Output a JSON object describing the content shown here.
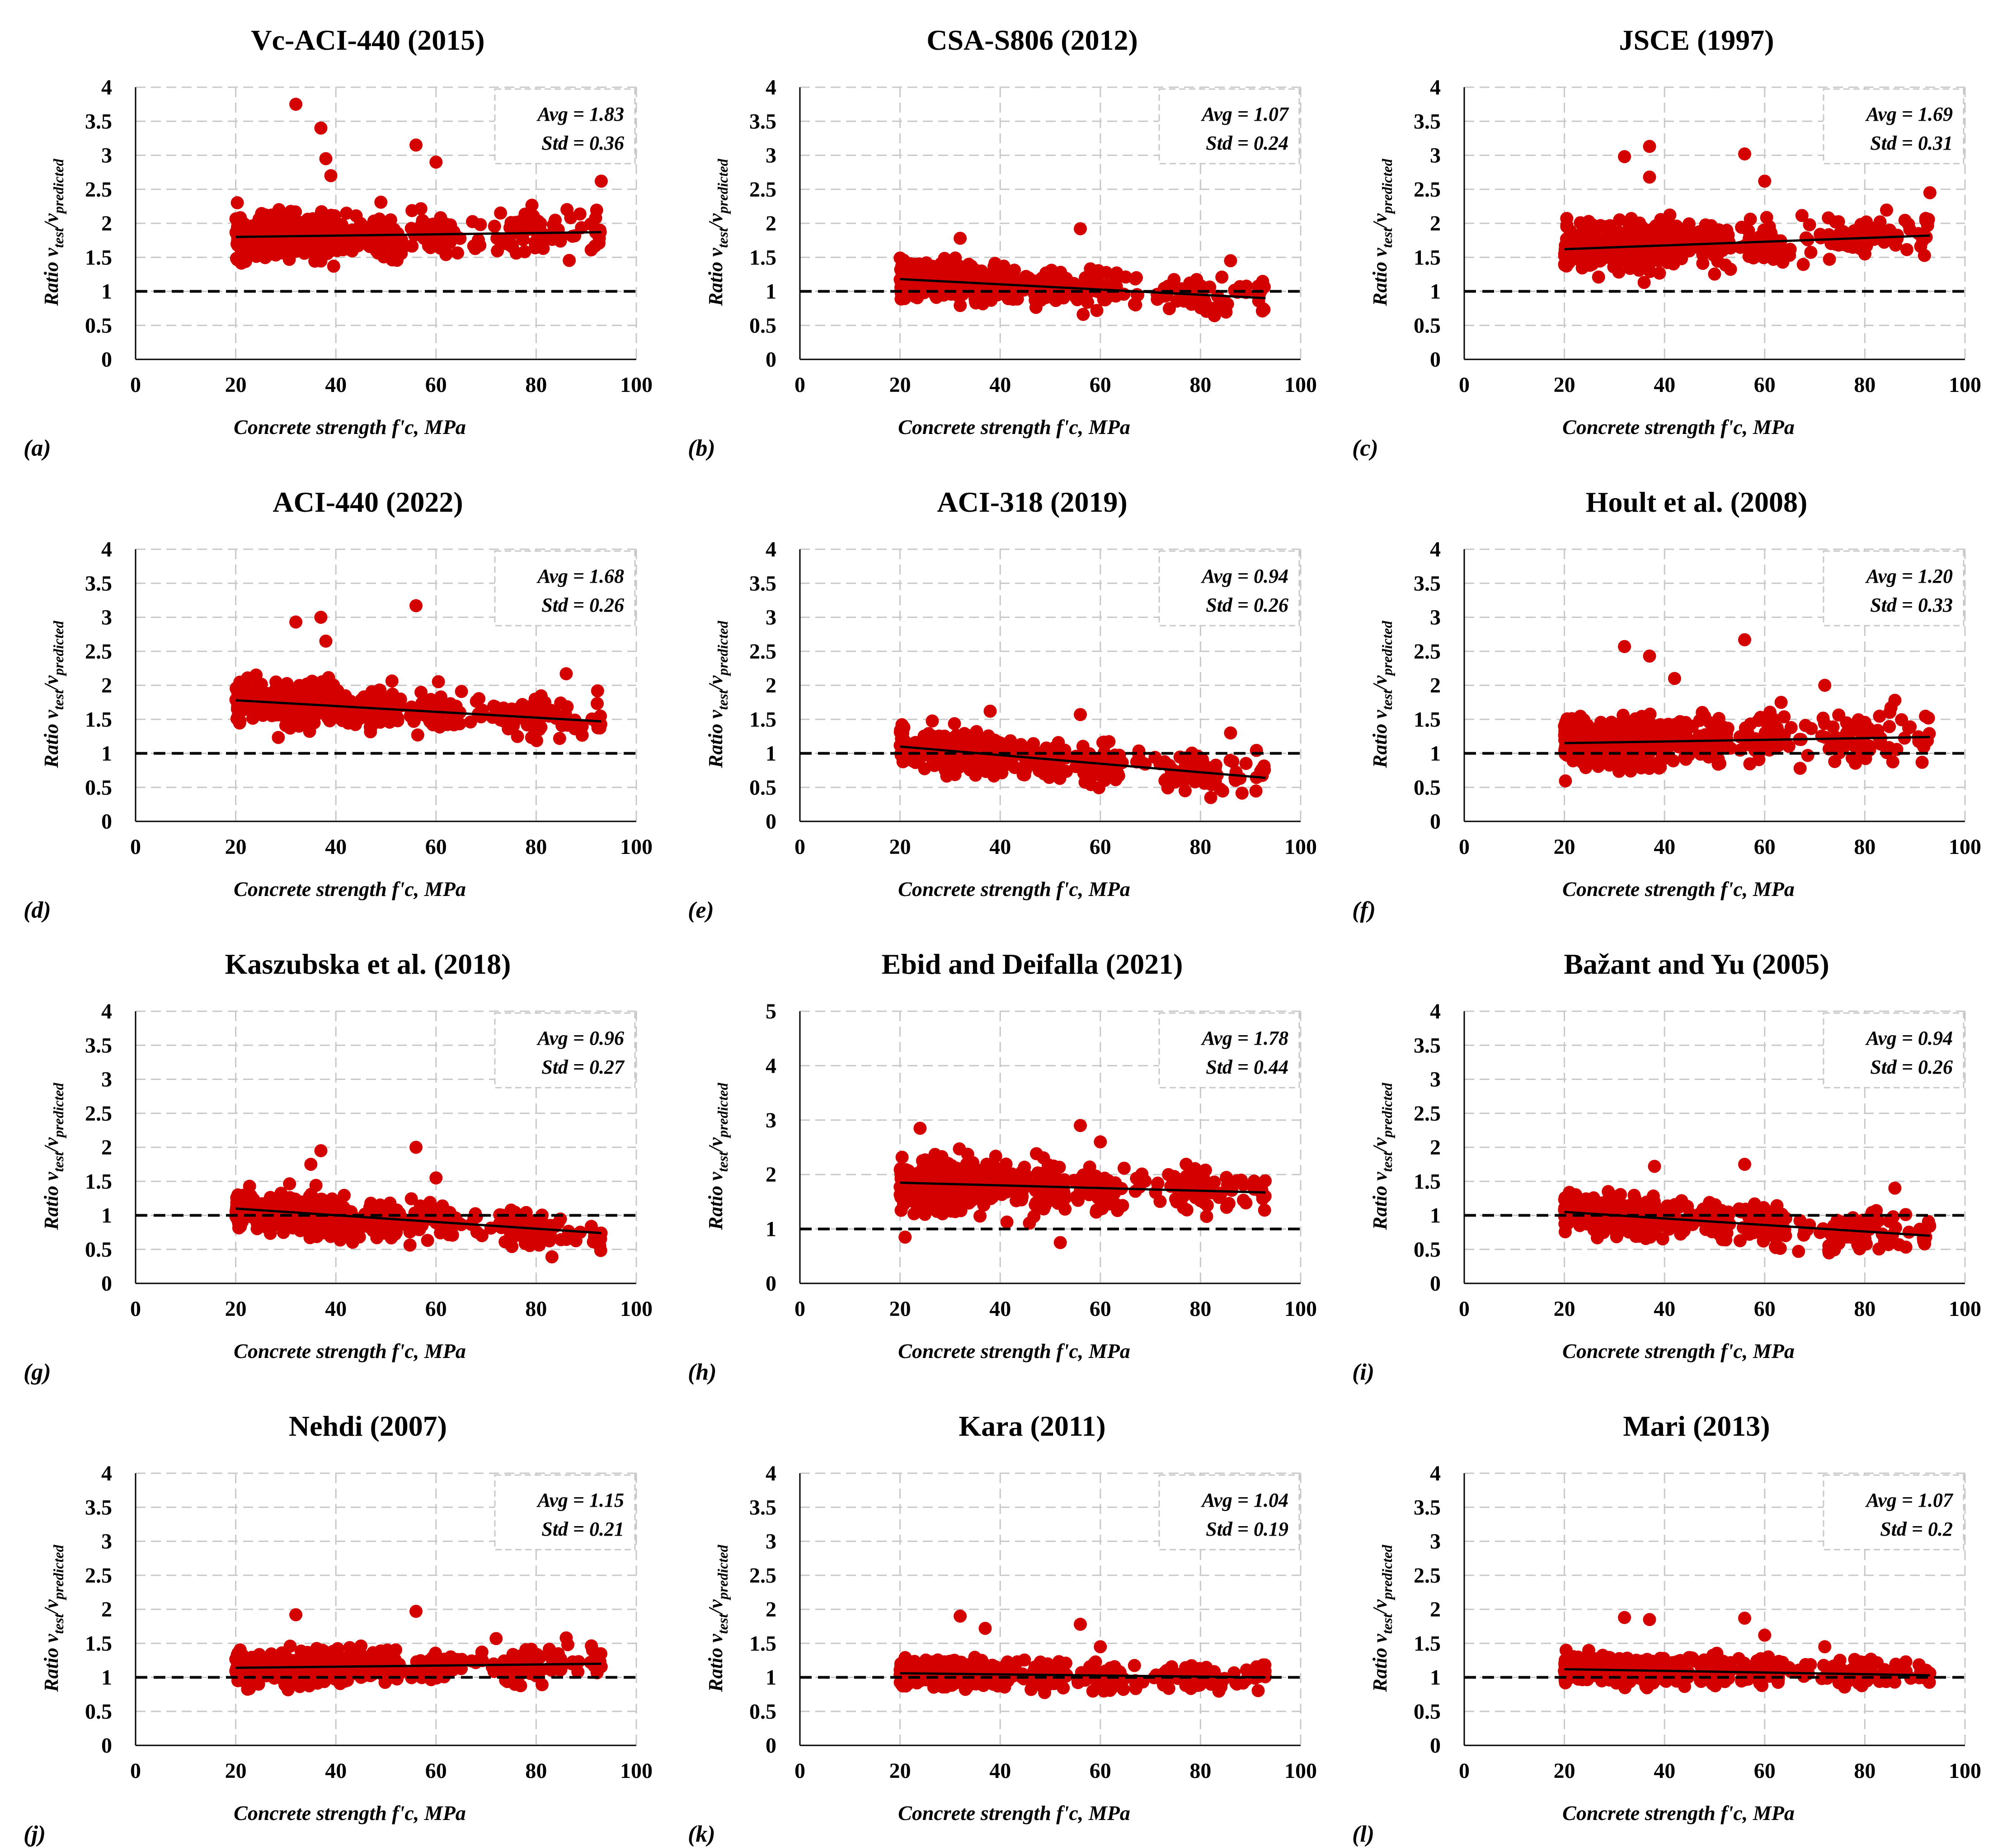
{
  "colors": {
    "point": "#d40000",
    "grid": "#c8c8c8",
    "axis": "#000000",
    "reference": "#000000",
    "trend": "#000000"
  },
  "chart_data": [
    {
      "type": "scatter",
      "panel_label": "(a)",
      "title": "Vc-ACI-440 (2015)",
      "avg_label": "Avg = 1.83",
      "std_label": "Std = 0.36",
      "avg": 1.83,
      "std": 0.36,
      "xlabel": "Concrete strength f'c, MPa",
      "ylabel_main": "Ratio v",
      "ylabel_sub1": "test",
      "ylabel_mid": "/v",
      "ylabel_sub2": "predicted",
      "xlim": [
        0,
        100
      ],
      "ylim": [
        0,
        4
      ],
      "xticks": [
        0,
        20,
        40,
        60,
        80,
        100
      ],
      "yticks": [
        0,
        0.5,
        1,
        1.5,
        2,
        2.5,
        3,
        3.5,
        4
      ],
      "xtick_labels": [
        "0",
        "20",
        "40",
        "60",
        "80",
        "100"
      ],
      "ytick_labels": [
        "0",
        "0.5",
        "1",
        "1.5",
        "2",
        "2.5",
        "3",
        "3.5",
        "4"
      ],
      "reference_line": 1,
      "trend": [
        [
          20,
          1.8
        ],
        [
          93,
          1.87
        ]
      ],
      "spread": 0.28,
      "outliers": [
        [
          32,
          3.75
        ],
        [
          37,
          3.4
        ],
        [
          38,
          2.95
        ],
        [
          56,
          3.15
        ],
        [
          60,
          2.9
        ],
        [
          93,
          2.62
        ],
        [
          39,
          2.7
        ]
      ]
    },
    {
      "type": "scatter",
      "panel_label": "(b)",
      "title": "CSA-S806 (2012)",
      "avg_label": "Avg = 1.07",
      "std_label": "Std = 0.24",
      "avg": 1.07,
      "std": 0.24,
      "xlabel": "Concrete strength f'c, MPa",
      "ylabel_main": "Ratio v",
      "ylabel_sub1": "test",
      "ylabel_mid": "/v",
      "ylabel_sub2": "predicted",
      "xlim": [
        0,
        100
      ],
      "ylim": [
        0,
        4
      ],
      "xticks": [
        0,
        20,
        40,
        60,
        80,
        100
      ],
      "yticks": [
        0,
        0.5,
        1,
        1.5,
        2,
        2.5,
        3,
        3.5,
        4
      ],
      "xtick_labels": [
        "0",
        "20",
        "40",
        "60",
        "80",
        "100"
      ],
      "ytick_labels": [
        "0",
        "0.5",
        "1",
        "1.5",
        "2",
        "2.5",
        "3",
        "3.5",
        "4"
      ],
      "reference_line": 1,
      "trend": [
        [
          20,
          1.18
        ],
        [
          93,
          0.9
        ]
      ],
      "spread": 0.22,
      "outliers": [
        [
          56,
          1.92
        ],
        [
          86,
          1.45
        ],
        [
          32,
          1.78
        ]
      ]
    },
    {
      "type": "scatter",
      "panel_label": "(c)",
      "title": "JSCE (1997)",
      "avg_label": "Avg = 1.69",
      "std_label": "Std = 0.31",
      "avg": 1.69,
      "std": 0.31,
      "xlabel": "Concrete strength f'c, MPa",
      "ylabel_main": "Ratio v",
      "ylabel_sub1": "test",
      "ylabel_mid": "/v",
      "ylabel_sub2": "predicted",
      "xlim": [
        0,
        100
      ],
      "ylim": [
        0,
        4
      ],
      "xticks": [
        0,
        20,
        40,
        60,
        80,
        100
      ],
      "yticks": [
        0,
        0.5,
        1,
        1.5,
        2,
        2.5,
        3,
        3.5,
        4
      ],
      "xtick_labels": [
        "0",
        "20",
        "40",
        "60",
        "80",
        "100"
      ],
      "ytick_labels": [
        "0",
        "0.5",
        "1",
        "1.5",
        "2",
        "2.5",
        "3",
        "3.5",
        "4"
      ],
      "reference_line": 1,
      "trend": [
        [
          20,
          1.62
        ],
        [
          93,
          1.82
        ]
      ],
      "spread": 0.27,
      "outliers": [
        [
          32,
          2.98
        ],
        [
          37,
          3.13
        ],
        [
          37,
          2.68
        ],
        [
          56,
          3.02
        ],
        [
          60,
          2.62
        ],
        [
          93,
          2.45
        ]
      ]
    },
    {
      "type": "scatter",
      "panel_label": "(d)",
      "title": "ACI-440 (2022)",
      "avg_label": "Avg = 1.68",
      "std_label": "Std = 0.26",
      "avg": 1.68,
      "std": 0.26,
      "xlabel": "Concrete strength f'c, MPa",
      "ylabel_main": "Ratio v",
      "ylabel_sub1": "test",
      "ylabel_mid": "/v",
      "ylabel_sub2": "predicted",
      "xlim": [
        0,
        100
      ],
      "ylim": [
        0,
        4
      ],
      "xticks": [
        0,
        20,
        40,
        60,
        80,
        100
      ],
      "yticks": [
        0,
        0.5,
        1,
        1.5,
        2,
        2.5,
        3,
        3.5,
        4
      ],
      "xtick_labels": [
        "0",
        "20",
        "40",
        "60",
        "80",
        "100"
      ],
      "ytick_labels": [
        "0",
        "0.5",
        "1",
        "1.5",
        "2",
        "2.5",
        "3",
        "3.5",
        "4"
      ],
      "reference_line": 1,
      "trend": [
        [
          20,
          1.78
        ],
        [
          93,
          1.47
        ]
      ],
      "spread": 0.25,
      "outliers": [
        [
          32,
          2.93
        ],
        [
          37,
          3.0
        ],
        [
          56,
          3.17
        ],
        [
          38,
          2.65
        ],
        [
          86,
          2.17
        ]
      ]
    },
    {
      "type": "scatter",
      "panel_label": "(e)",
      "title": "ACI-318 (2019)",
      "avg_label": "Avg = 0.94",
      "std_label": "Std = 0.26",
      "avg": 0.94,
      "std": 0.26,
      "xlabel": "Concrete strength f'c, MPa",
      "ylabel_main": "Ratio v",
      "ylabel_sub1": "test",
      "ylabel_mid": "/v",
      "ylabel_sub2": "predicted",
      "xlim": [
        0,
        100
      ],
      "ylim": [
        0,
        4
      ],
      "xticks": [
        0,
        20,
        40,
        60,
        80,
        100
      ],
      "yticks": [
        0,
        0.5,
        1,
        1.5,
        2,
        2.5,
        3,
        3.5,
        4
      ],
      "xtick_labels": [
        "0",
        "20",
        "40",
        "60",
        "80",
        "100"
      ],
      "ytick_labels": [
        "0",
        "0.5",
        "1",
        "1.5",
        "2",
        "2.5",
        "3",
        "3.5",
        "4"
      ],
      "reference_line": 1,
      "trend": [
        [
          20,
          1.1
        ],
        [
          93,
          0.64
        ]
      ],
      "spread": 0.24,
      "outliers": [
        [
          56,
          1.57
        ],
        [
          86,
          1.3
        ],
        [
          38,
          1.62
        ]
      ]
    },
    {
      "type": "scatter",
      "panel_label": "(f)",
      "title": "Hoult et al. (2008)",
      "avg_label": "Avg = 1.20",
      "std_label": "Std = 0.33",
      "avg": 1.2,
      "std": 0.33,
      "xlabel": "Concrete strength f'c, MPa",
      "ylabel_main": "Ratio v",
      "ylabel_sub1": "test",
      "ylabel_mid": "/v",
      "ylabel_sub2": "predicted",
      "xlim": [
        0,
        100
      ],
      "ylim": [
        0,
        4
      ],
      "xticks": [
        0,
        20,
        40,
        60,
        80,
        100
      ],
      "yticks": [
        0,
        0.5,
        1,
        1.5,
        2,
        2.5,
        3,
        3.5,
        4
      ],
      "xtick_labels": [
        "0",
        "20",
        "40",
        "60",
        "80",
        "100"
      ],
      "ytick_labels": [
        "0",
        "0.5",
        "1",
        "1.5",
        "2",
        "2.5",
        "3",
        "3.5",
        "4"
      ],
      "reference_line": 1,
      "trend": [
        [
          20,
          1.15
        ],
        [
          93,
          1.24
        ]
      ],
      "spread": 0.3,
      "outliers": [
        [
          32,
          2.57
        ],
        [
          37,
          2.43
        ],
        [
          56,
          2.67
        ],
        [
          72,
          2.0
        ],
        [
          86,
          1.78
        ],
        [
          42,
          2.1
        ]
      ]
    },
    {
      "type": "scatter",
      "panel_label": "(g)",
      "title": "Kaszubska  et al. (2018)",
      "avg_label": "Avg = 0.96",
      "std_label": "Std = 0.27",
      "avg": 0.96,
      "std": 0.27,
      "xlabel": "Concrete strength f'c, MPa",
      "ylabel_main": "Ratio v",
      "ylabel_sub1": "test",
      "ylabel_mid": "/v",
      "ylabel_sub2": "predicted",
      "xlim": [
        0,
        100
      ],
      "ylim": [
        0,
        4
      ],
      "xticks": [
        0,
        20,
        40,
        60,
        80,
        100
      ],
      "yticks": [
        0,
        0.5,
        1,
        1.5,
        2,
        2.5,
        3,
        3.5,
        4
      ],
      "xtick_labels": [
        "0",
        "20",
        "40",
        "60",
        "80",
        "100"
      ],
      "ytick_labels": [
        "0",
        "0.5",
        "1",
        "1.5",
        "2",
        "2.5",
        "3",
        "3.5",
        "4"
      ],
      "reference_line": 1,
      "trend": [
        [
          20,
          1.1
        ],
        [
          93,
          0.74
        ]
      ],
      "spread": 0.23,
      "outliers": [
        [
          56,
          2.0
        ],
        [
          37,
          1.95
        ],
        [
          60,
          1.55
        ],
        [
          35,
          1.75
        ]
      ]
    },
    {
      "type": "scatter",
      "panel_label": "(h)",
      "title": "Ebid and Deifalla (2021)",
      "avg_label": "Avg = 1.78",
      "std_label": "Std = 0.44",
      "avg": 1.78,
      "std": 0.44,
      "xlabel": "Concrete strength f'c, MPa",
      "ylabel_main": "Ratio v",
      "ylabel_sub1": "test",
      "ylabel_mid": "/v",
      "ylabel_sub2": "predicted",
      "xlim": [
        0,
        100
      ],
      "ylim": [
        0,
        5
      ],
      "xticks": [
        0,
        20,
        40,
        60,
        80,
        100
      ],
      "yticks": [
        0,
        1,
        2,
        3,
        4,
        5
      ],
      "xtick_labels": [
        "0",
        "20",
        "40",
        "60",
        "80",
        "100"
      ],
      "ytick_labels": [
        "0",
        "1",
        "2",
        "3",
        "4",
        "5"
      ],
      "reference_line": 1,
      "trend": [
        [
          20,
          1.85
        ],
        [
          93,
          1.67
        ]
      ],
      "spread": 0.38,
      "outliers": [
        [
          56,
          2.9
        ],
        [
          24,
          2.85
        ],
        [
          60,
          2.6
        ],
        [
          52,
          0.75
        ],
        [
          21,
          0.85
        ]
      ]
    },
    {
      "type": "scatter",
      "panel_label": "(i)",
      "title": "Bažant and Yu (2005)",
      "avg_label": "Avg = 0.94",
      "std_label": "Std = 0.26",
      "avg": 0.94,
      "std": 0.26,
      "xlabel": "Concrete strength f'c, MPa",
      "ylabel_main": "Ratio v",
      "ylabel_sub1": "test",
      "ylabel_mid": "/v",
      "ylabel_sub2": "predicted",
      "xlim": [
        0,
        100
      ],
      "ylim": [
        0,
        4
      ],
      "xticks": [
        0,
        20,
        40,
        60,
        80,
        100
      ],
      "yticks": [
        0,
        0.5,
        1,
        1.5,
        2,
        2.5,
        3,
        3.5,
        4
      ],
      "xtick_labels": [
        "0",
        "20",
        "40",
        "60",
        "80",
        "100"
      ],
      "ytick_labels": [
        "0",
        "0.5",
        "1",
        "1.5",
        "2",
        "2.5",
        "3",
        "3.5",
        "4"
      ],
      "reference_line": 1,
      "trend": [
        [
          20,
          1.05
        ],
        [
          93,
          0.7
        ]
      ],
      "spread": 0.23,
      "outliers": [
        [
          56,
          1.75
        ],
        [
          86,
          1.4
        ],
        [
          38,
          1.72
        ]
      ]
    },
    {
      "type": "scatter",
      "panel_label": "(j)",
      "title": "Nehdi (2007)",
      "avg_label": "Avg = 1.15",
      "std_label": "Std = 0.21",
      "avg": 1.15,
      "std": 0.21,
      "xlabel": "Concrete strength f'c, MPa",
      "ylabel_main": "Ratio v",
      "ylabel_sub1": "test",
      "ylabel_mid": "/v",
      "ylabel_sub2": "predicted",
      "xlim": [
        0,
        100
      ],
      "ylim": [
        0,
        4
      ],
      "xticks": [
        0,
        20,
        40,
        60,
        80,
        100
      ],
      "yticks": [
        0,
        0.5,
        1,
        1.5,
        2,
        2.5,
        3,
        3.5,
        4
      ],
      "xtick_labels": [
        "0",
        "20",
        "40",
        "60",
        "80",
        "100"
      ],
      "ytick_labels": [
        "0",
        "0.5",
        "1",
        "1.5",
        "2",
        "2.5",
        "3",
        "3.5",
        "4"
      ],
      "reference_line": 1,
      "trend": [
        [
          20,
          1.14
        ],
        [
          93,
          1.2
        ]
      ],
      "spread": 0.2,
      "outliers": [
        [
          32,
          1.92
        ],
        [
          56,
          1.97
        ],
        [
          72,
          1.57
        ],
        [
          86,
          1.58
        ]
      ]
    },
    {
      "type": "scatter",
      "panel_label": "(k)",
      "title": "Kara (2011)",
      "avg_label": "Avg = 1.04",
      "std_label": "Std = 0.19",
      "avg": 1.04,
      "std": 0.19,
      "xlabel": "Concrete strength f'c, MPa",
      "ylabel_main": "Ratio v",
      "ylabel_sub1": "test",
      "ylabel_mid": "/v",
      "ylabel_sub2": "predicted",
      "xlim": [
        0,
        100
      ],
      "ylim": [
        0,
        4
      ],
      "xticks": [
        0,
        20,
        40,
        60,
        80,
        100
      ],
      "yticks": [
        0,
        0.5,
        1,
        1.5,
        2,
        2.5,
        3,
        3.5,
        4
      ],
      "xtick_labels": [
        "0",
        "20",
        "40",
        "60",
        "80",
        "100"
      ],
      "ytick_labels": [
        "0",
        "0.5",
        "1",
        "1.5",
        "2",
        "2.5",
        "3",
        "3.5",
        "4"
      ],
      "reference_line": 1,
      "trend": [
        [
          20,
          1.06
        ],
        [
          93,
          1.0
        ]
      ],
      "spread": 0.17,
      "outliers": [
        [
          32,
          1.9
        ],
        [
          56,
          1.78
        ],
        [
          37,
          1.72
        ],
        [
          60,
          1.45
        ]
      ]
    },
    {
      "type": "scatter",
      "panel_label": "(l)",
      "title": "Mari (2013)",
      "avg_label": "Avg = 1.07",
      "std_label": "Std = 0.2",
      "avg": 1.07,
      "std": 0.2,
      "xlabel": "Concrete strength f'c, MPa",
      "ylabel_main": "Ratio v",
      "ylabel_sub1": "test",
      "ylabel_mid": "/v",
      "ylabel_sub2": "predicted",
      "xlim": [
        0,
        100
      ],
      "ylim": [
        0,
        4
      ],
      "xticks": [
        0,
        20,
        40,
        60,
        80,
        100
      ],
      "yticks": [
        0,
        0.5,
        1,
        1.5,
        2,
        2.5,
        3,
        3.5,
        4
      ],
      "xtick_labels": [
        "0",
        "20",
        "40",
        "60",
        "80",
        "100"
      ],
      "ytick_labels": [
        "0",
        "0.5",
        "1",
        "1.5",
        "2",
        "2.5",
        "3",
        "3.5",
        "4"
      ],
      "reference_line": 1,
      "trend": [
        [
          20,
          1.12
        ],
        [
          93,
          1.03
        ]
      ],
      "spread": 0.17,
      "outliers": [
        [
          32,
          1.88
        ],
        [
          37,
          1.85
        ],
        [
          56,
          1.87
        ],
        [
          60,
          1.62
        ],
        [
          72,
          1.45
        ]
      ]
    }
  ]
}
